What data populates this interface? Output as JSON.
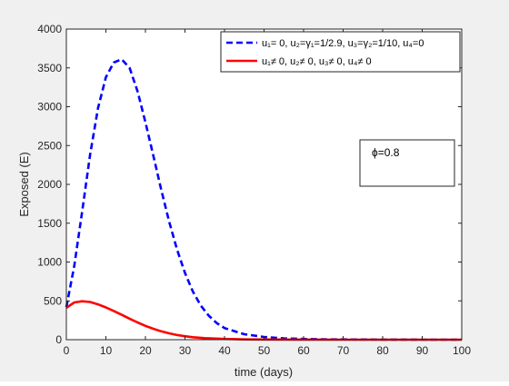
{
  "chart_data": {
    "type": "line",
    "xlabel": "time (days)",
    "ylabel": "Exposed (E)",
    "xlim": [
      0,
      100
    ],
    "ylim": [
      0,
      4000
    ],
    "xticks": [
      0,
      10,
      20,
      30,
      40,
      50,
      60,
      70,
      80,
      90,
      100
    ],
    "yticks": [
      0,
      500,
      1000,
      1500,
      2000,
      2500,
      3000,
      3500,
      4000
    ],
    "grid": false,
    "legend_position": "top-right",
    "annotation": {
      "text": "ϕ=0.8",
      "x": 75,
      "y": 2400
    },
    "series": [
      {
        "name": "u₁= 0, u₂=γ₁=1/2.9, u₃=γ₂=1/10, u₄=0",
        "color": "#0000ff",
        "style": "dashed",
        "x": [
          0,
          2,
          4,
          6,
          8,
          10,
          12,
          14,
          16,
          18,
          20,
          22,
          24,
          26,
          28,
          30,
          32,
          34,
          36,
          38,
          40,
          45,
          50,
          55,
          60,
          65,
          70,
          80,
          90,
          100
        ],
        "y": [
          420,
          950,
          1650,
          2380,
          2980,
          3380,
          3570,
          3610,
          3500,
          3200,
          2800,
          2370,
          1930,
          1520,
          1160,
          860,
          620,
          440,
          310,
          215,
          150,
          70,
          35,
          18,
          9,
          5,
          3,
          1,
          0,
          0
        ]
      },
      {
        "name": "u₁≠ 0, u₂≠ 0, u₃≠ 0, u₄≠ 0",
        "color": "#ff0000",
        "style": "solid",
        "x": [
          0,
          2,
          4,
          6,
          8,
          10,
          12,
          14,
          16,
          18,
          20,
          22,
          24,
          26,
          28,
          30,
          32,
          35,
          40,
          45,
          50,
          60,
          70,
          80,
          90,
          100
        ],
        "y": [
          410,
          480,
          495,
          485,
          455,
          415,
          370,
          320,
          270,
          222,
          178,
          140,
          108,
          82,
          60,
          44,
          32,
          20,
          9,
          4,
          2,
          1,
          0,
          0,
          0,
          0
        ]
      }
    ]
  }
}
